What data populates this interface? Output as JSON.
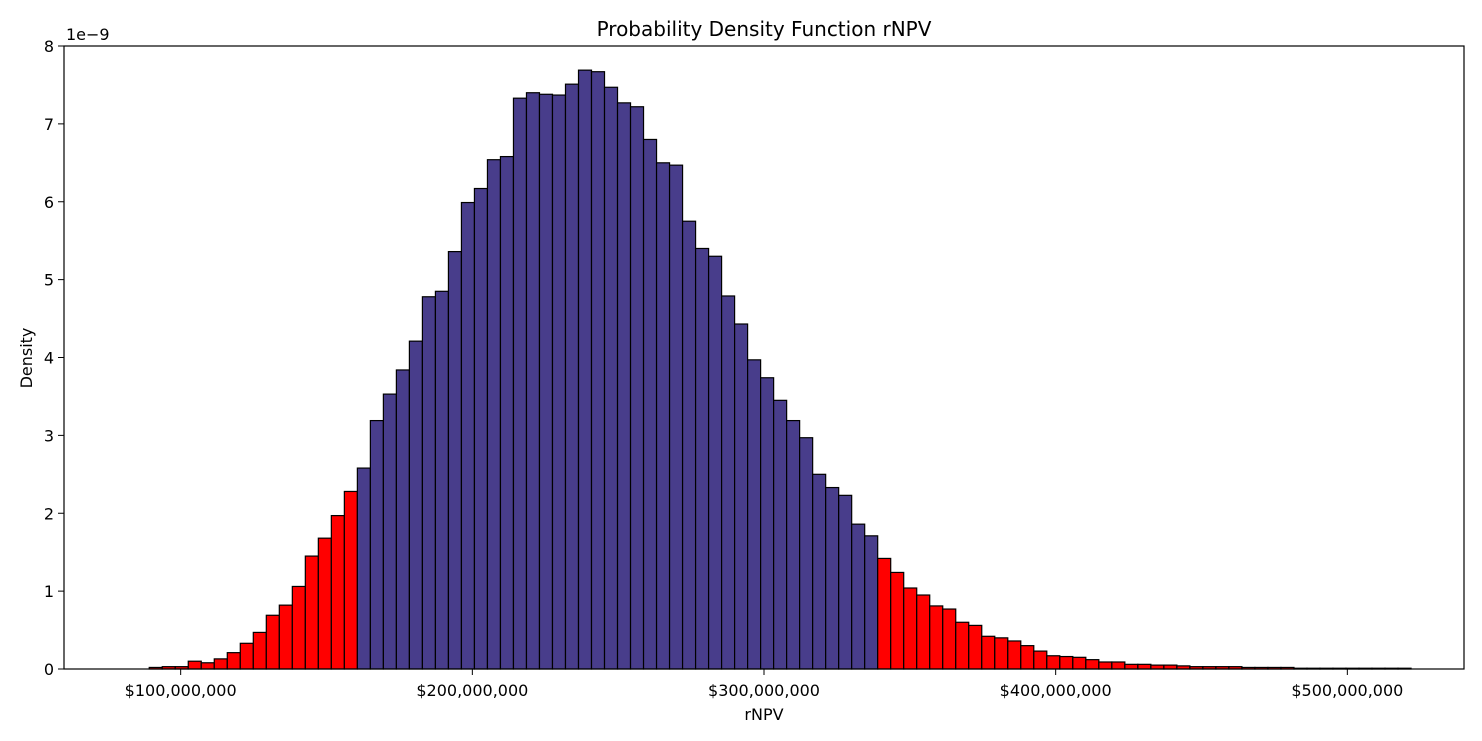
{
  "chart_data": {
    "type": "bar",
    "title": "Probability Density Function rNPV",
    "xlabel": "rNPV",
    "ylabel": "Density",
    "y_multiplier_label": "1e−9",
    "xlim": [
      60000000,
      540000000
    ],
    "ylim": [
      0,
      8
    ],
    "x_ticks": [
      100000000,
      200000000,
      300000000,
      400000000,
      500000000
    ],
    "x_tick_labels": [
      "$100,000,000",
      "$200,000,000",
      "$300,000,000",
      "$400,000,000",
      "$500,000,000"
    ],
    "y_ticks": [
      0,
      1,
      2,
      3,
      4,
      5,
      6,
      7,
      8
    ],
    "y_tick_labels": [
      "0",
      "1",
      "2",
      "3",
      "4",
      "5",
      "6",
      "7",
      "8"
    ],
    "grid": false,
    "bin_start": 80300000,
    "bin_width": 4460000,
    "colors": {
      "tail": "#ff0000",
      "center": "#483d8b",
      "edge": "#000000"
    },
    "values": [
      0.0,
      0.0,
      0.02,
      0.03,
      0.03,
      0.1,
      0.08,
      0.13,
      0.21,
      0.33,
      0.47,
      0.69,
      0.82,
      1.06,
      1.45,
      1.68,
      1.97,
      2.28,
      2.58,
      3.19,
      3.53,
      3.84,
      4.21,
      4.78,
      4.85,
      5.36,
      5.99,
      6.17,
      6.54,
      6.58,
      7.33,
      7.4,
      7.38,
      7.37,
      7.51,
      7.69,
      7.67,
      7.47,
      7.27,
      7.22,
      6.8,
      6.5,
      6.47,
      5.75,
      5.4,
      5.3,
      4.79,
      4.43,
      3.97,
      3.74,
      3.45,
      3.19,
      2.97,
      2.5,
      2.33,
      2.23,
      1.86,
      1.71,
      1.42,
      1.24,
      1.04,
      0.95,
      0.81,
      0.77,
      0.6,
      0.56,
      0.42,
      0.4,
      0.36,
      0.3,
      0.23,
      0.17,
      0.16,
      0.15,
      0.12,
      0.09,
      0.09,
      0.06,
      0.06,
      0.05,
      0.05,
      0.04,
      0.03,
      0.03,
      0.03,
      0.03,
      0.02,
      0.02,
      0.02,
      0.02,
      0.01,
      0.01,
      0.01,
      0.01,
      0.01,
      0.01,
      0.01,
      0.01,
      0.01,
      0.0,
      0.0
    ],
    "color_categories": [
      "tail",
      "tail",
      "tail",
      "tail",
      "tail",
      "tail",
      "tail",
      "tail",
      "tail",
      "tail",
      "tail",
      "tail",
      "tail",
      "tail",
      "tail",
      "tail",
      "tail",
      "tail",
      "center",
      "center",
      "center",
      "center",
      "center",
      "center",
      "center",
      "center",
      "center",
      "center",
      "center",
      "center",
      "center",
      "center",
      "center",
      "center",
      "center",
      "center",
      "center",
      "center",
      "center",
      "center",
      "center",
      "center",
      "center",
      "center",
      "center",
      "center",
      "center",
      "center",
      "center",
      "center",
      "center",
      "center",
      "center",
      "center",
      "center",
      "center",
      "center",
      "center",
      "tail",
      "tail",
      "tail",
      "tail",
      "tail",
      "tail",
      "tail",
      "tail",
      "tail",
      "tail",
      "tail",
      "tail",
      "tail",
      "tail",
      "tail",
      "tail",
      "tail",
      "tail",
      "tail",
      "tail",
      "tail",
      "tail",
      "tail",
      "tail",
      "tail",
      "tail",
      "tail",
      "tail",
      "tail",
      "tail",
      "tail",
      "tail",
      "tail",
      "tail",
      "tail",
      "tail",
      "tail",
      "tail",
      "tail",
      "tail",
      "tail"
    ]
  }
}
